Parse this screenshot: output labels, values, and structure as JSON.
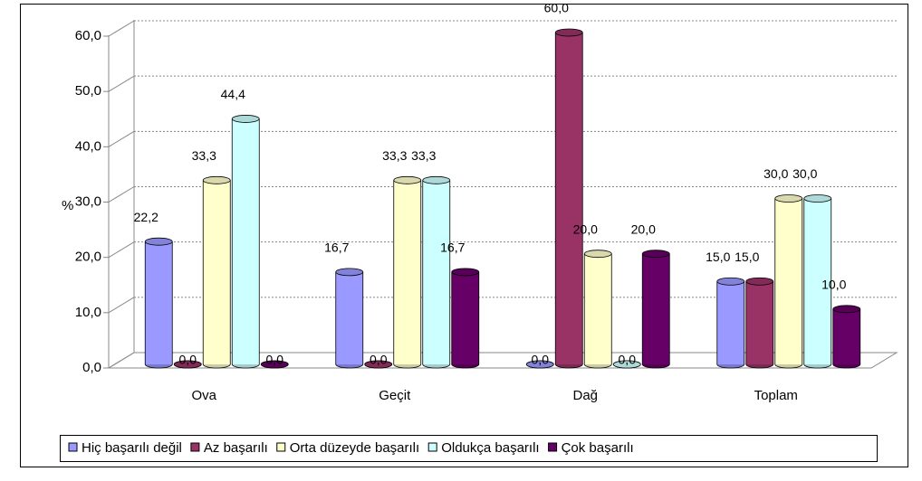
{
  "chart_data": {
    "type": "bar3d",
    "ylabel": "%",
    "categories": [
      "Ova",
      "Geçit",
      "Dağ",
      "Toplam"
    ],
    "series": [
      {
        "name": "Hiç başarılı değil",
        "color": "#9999ff",
        "values": [
          22.2,
          16.7,
          0,
          15
        ],
        "value_labels": [
          "22,2",
          "16,7",
          "0,0",
          "15,0"
        ]
      },
      {
        "name": "Az başarılı",
        "color": "#993366",
        "values": [
          0,
          0,
          60,
          15
        ],
        "value_labels": [
          "0,0",
          "0,0",
          "60,0",
          "15,0"
        ]
      },
      {
        "name": "Orta düzeyde başarılı",
        "color": "#ffffcc",
        "values": [
          33.3,
          33.3,
          20,
          30
        ],
        "value_labels": [
          "33,3",
          "33,3",
          "20,0",
          "30,0"
        ]
      },
      {
        "name": "Oldukça başarılı",
        "color": "#ccffff",
        "values": [
          44.4,
          33.3,
          0,
          30
        ],
        "value_labels": [
          "44,4",
          "33,3",
          "0,0",
          "30,0"
        ]
      },
      {
        "name": "Çok başarılı",
        "color": "#660066",
        "values": [
          0,
          16.7,
          20,
          10
        ],
        "value_labels": [
          "0,0",
          "16,7",
          "20,0",
          "10,0"
        ]
      }
    ],
    "ylim": [
      0,
      60
    ],
    "yticks": [
      {
        "value": 0,
        "label": "0,0"
      },
      {
        "value": 10,
        "label": "10,0"
      },
      {
        "value": 20,
        "label": "20,0"
      },
      {
        "value": 30,
        "label": "30,0"
      },
      {
        "value": 40,
        "label": "40,0"
      },
      {
        "value": 50,
        "label": "50,0"
      },
      {
        "value": 60,
        "label": "60,0"
      }
    ],
    "grid": true
  }
}
